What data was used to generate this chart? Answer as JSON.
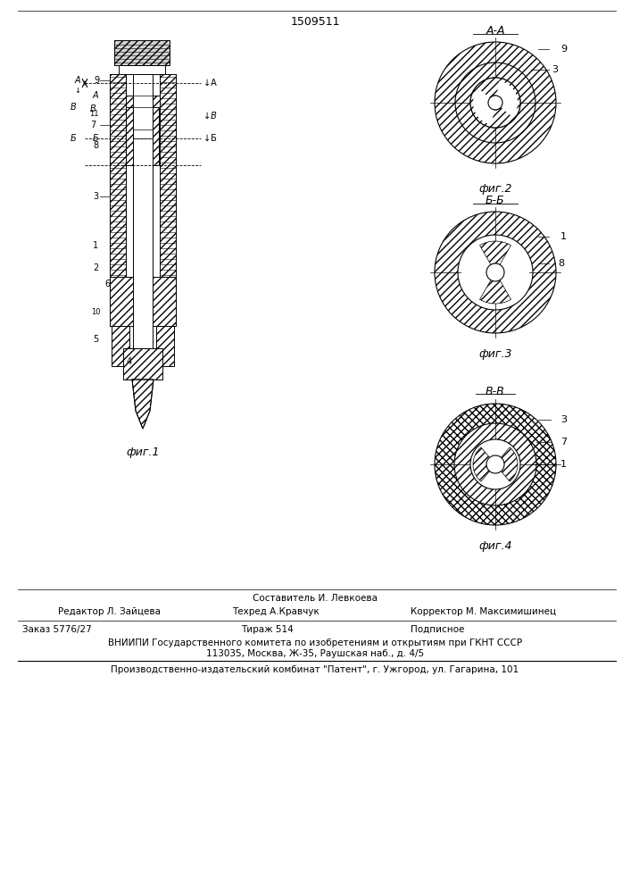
{
  "patent_number": "1509511",
  "bg_color": "#ffffff",
  "hatch_color": "#000000",
  "line_color": "#000000",
  "fig1_label": "фиг.1",
  "fig2_label": "фиг.2",
  "fig3_label": "фиг.3",
  "fig4_label": "фиг.4",
  "section_AA": "А-А",
  "section_BB": "Б-Б",
  "section_VV": "В-В",
  "footer_line1": "Составитель И. Левкоева",
  "footer_editor": "Редактор Л. Зайцева",
  "footer_techred": "Техред А.Кравчук",
  "footer_corrector": "Корректор М. Максимишинец",
  "footer_order": "Заказ 5776/27",
  "footer_tirage": "Тираж 514",
  "footer_podpisnoe": "Подписное",
  "footer_vniip": "ВНИИПИ Государственного комитета по изобретениям и открытиям при ГКНТ СССР",
  "footer_address": "113035, Москва, Ж-35, Раушская наб., д. 4/5",
  "footer_prod": "Производственно-издательский комбинат \"Патент\", г. Ужгород, ул. Гагарина, 101"
}
